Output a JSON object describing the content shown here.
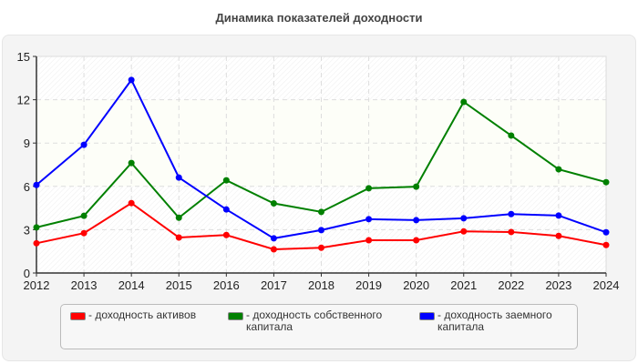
{
  "chart_data": {
    "type": "line",
    "title": "Динамика показателей доходности",
    "xlabel": "",
    "ylabel": "",
    "x": [
      "2012",
      "2013",
      "2014",
      "2015",
      "2016",
      "2017",
      "2018",
      "2019",
      "2020",
      "2021",
      "2022",
      "2023",
      "2024"
    ],
    "ylim": [
      0,
      15
    ],
    "yticks": [
      "0",
      "3",
      "6",
      "9",
      "12",
      "15"
    ],
    "grid": true,
    "legend": "bottom",
    "series": [
      {
        "name": "- доходность активов",
        "color": "#ff0000",
        "values": [
          2.06,
          2.76,
          4.84,
          2.46,
          2.63,
          1.64,
          1.75,
          2.27,
          2.27,
          2.88,
          2.84,
          2.57,
          1.94
        ]
      },
      {
        "name": "- доходность собственного капитала",
        "color": "#008000",
        "values": [
          3.16,
          3.96,
          7.62,
          3.83,
          6.42,
          4.82,
          4.23,
          5.87,
          5.98,
          11.85,
          9.52,
          7.18,
          6.29
        ]
      },
      {
        "name": "- доходность заемного капитала",
        "color": "#0000ff",
        "values": [
          6.1,
          8.88,
          13.37,
          6.61,
          4.4,
          2.4,
          2.97,
          3.73,
          3.66,
          3.79,
          4.08,
          3.98,
          2.82
        ]
      }
    ]
  }
}
